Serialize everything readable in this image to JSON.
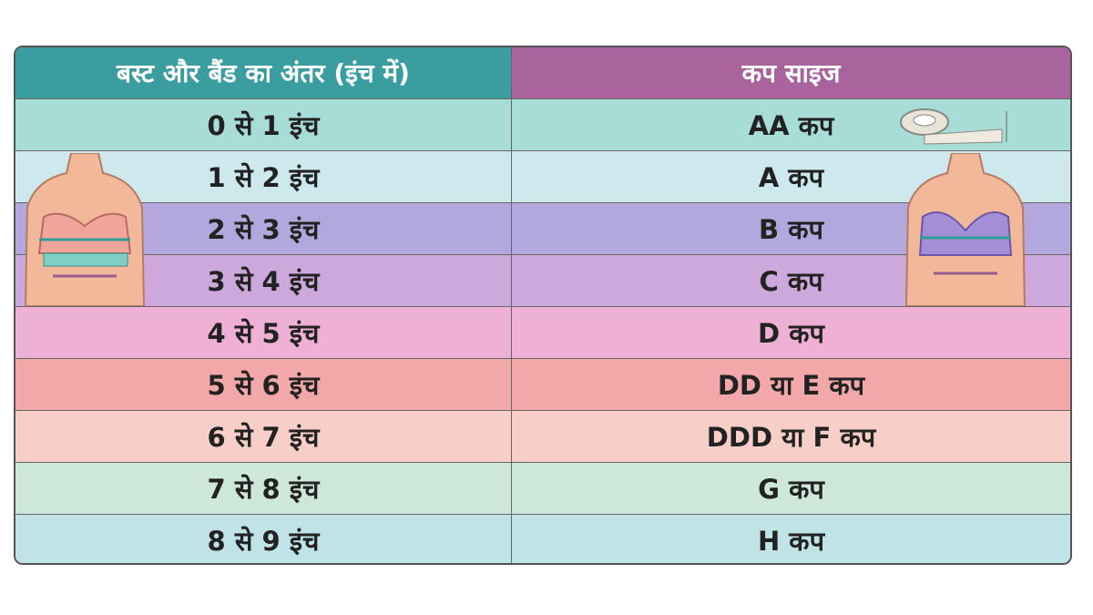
{
  "table": {
    "header": [
      "बस्ट और बैंड का अंतर (इंच में)",
      "कप साइज"
    ],
    "rows": [
      [
        "0 से 1 इंच",
        "AA कप"
      ],
      [
        "1 से 2 इंच",
        "A कप"
      ],
      [
        "2 से 3 इंच",
        "B कप"
      ],
      [
        "3 से 4 इंच",
        "C कप"
      ],
      [
        "4 से 5 इंच",
        "D कप"
      ],
      [
        "5 से 6 इंच",
        "DD या E कप"
      ],
      [
        "6 से 7 इंच",
        "DDD या F कप"
      ],
      [
        "7 से 8 इंच",
        "G कप"
      ],
      [
        "8 से 9 इंच",
        "H कप"
      ]
    ]
  }
}
